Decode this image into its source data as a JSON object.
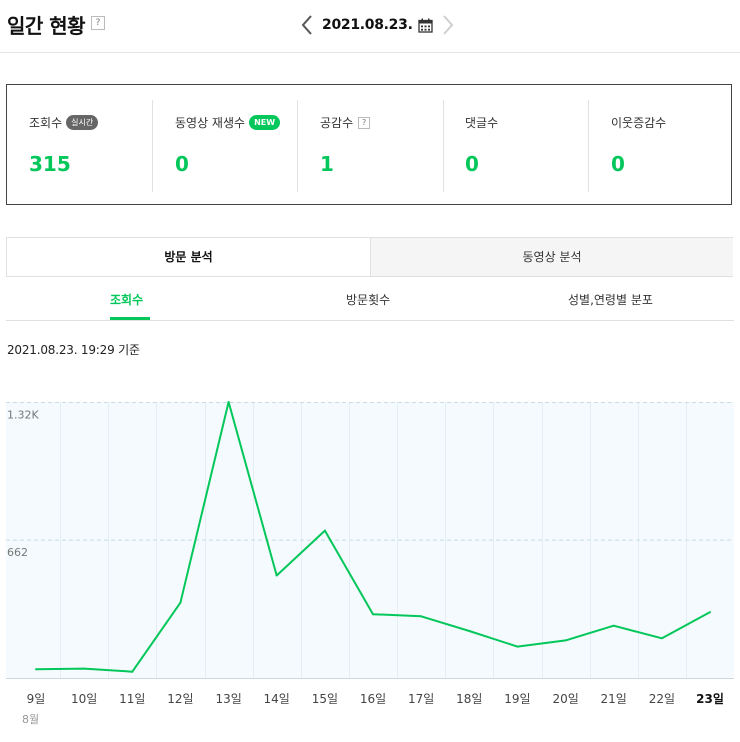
{
  "header": {
    "title": "일간 현황",
    "help_glyph": "?",
    "date": "2021.08.23."
  },
  "stats": [
    {
      "label": "조회수",
      "badge": "실시간",
      "value": "315"
    },
    {
      "label": "동영상 재생수",
      "badge": "NEW",
      "value": "0"
    },
    {
      "label": "공감수",
      "help": "?",
      "value": "1"
    },
    {
      "label": "댓글수",
      "value": "0"
    },
    {
      "label": "이웃증감수",
      "value": "0"
    }
  ],
  "tabs": [
    {
      "label": "방문 분석",
      "active": true
    },
    {
      "label": "동영상 분석",
      "active": false
    }
  ],
  "subtabs": [
    {
      "label": "조회수",
      "active": true
    },
    {
      "label": "방문횟수",
      "active": false
    },
    {
      "label": "성별,연령별 분포",
      "active": false
    }
  ],
  "basis_text": "2021.08.23. 19:29 기준",
  "colors": {
    "accent": "#03c75a",
    "plot_bg": "#f4fafd",
    "grid": "#c8dde8"
  },
  "chart_data": {
    "type": "line",
    "categories": [
      "9일",
      "10일",
      "11일",
      "12일",
      "13일",
      "14일",
      "15일",
      "16일",
      "17일",
      "18일",
      "19일",
      "20일",
      "21일",
      "22일",
      "23일"
    ],
    "month_label": "8월",
    "y_ticks": [
      {
        "label": "1.32K",
        "value": 1320
      },
      {
        "label": "662",
        "value": 662
      }
    ],
    "ylim": [
      0,
      1320
    ],
    "grid": true,
    "series": [
      {
        "values": [
          42,
          45,
          30,
          360,
          1320,
          490,
          705,
          305,
          295,
          225,
          150,
          180,
          250,
          190,
          315
        ]
      }
    ]
  }
}
